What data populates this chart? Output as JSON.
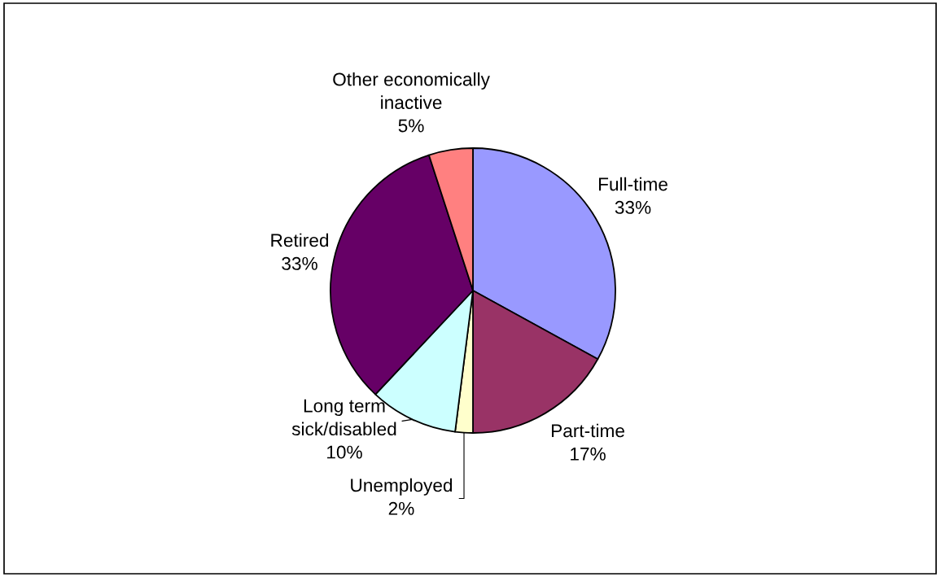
{
  "chart_data": {
    "type": "pie",
    "categories": [
      "Full-time",
      "Part-time",
      "Unemployed",
      "Long term\nsick/disabled",
      "Retired",
      "Other economically\ninactive"
    ],
    "values": [
      33,
      17,
      2,
      10,
      33,
      5
    ],
    "colors": [
      "#9999ff",
      "#993366",
      "#ffffcc",
      "#ccffff",
      "#660066",
      "#ff8080"
    ],
    "value_labels": [
      "33%",
      "17%",
      "2%",
      "10%",
      "33%",
      "5%"
    ]
  }
}
